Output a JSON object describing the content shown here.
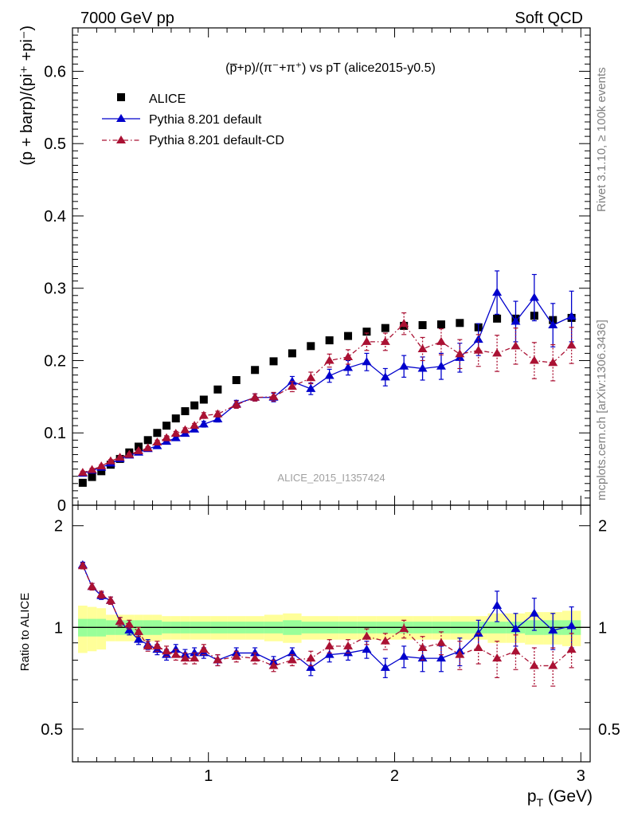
{
  "header": {
    "left": "7000 GeV pp",
    "right": "Soft QCD",
    "rivet": "Rivet 3.1.10, ≥ 100k events",
    "mcplots": "mcplots.cern.ch [arXiv:1306.3436]",
    "watermark": "ALICE_2015_I1357424"
  },
  "chart_data": [
    {
      "type": "scatter",
      "title": "(p̅+p)/(π⁻+π⁺) vs pT (alice2015-y0.5)",
      "xlabel": "p_T (GeV)",
      "ylabel": "(p + barp)/(pi⁺ +pi⁻)",
      "xlim": [
        0.27,
        3.05
      ],
      "ylim": [
        0,
        0.66
      ],
      "yticks": [
        "0",
        "0.1",
        "0.2",
        "0.3",
        "0.4",
        "0.5",
        "0.6"
      ],
      "legend_position": "top-left",
      "x": [
        0.325,
        0.375,
        0.425,
        0.475,
        0.525,
        0.575,
        0.625,
        0.675,
        0.725,
        0.775,
        0.825,
        0.875,
        0.925,
        0.975,
        1.05,
        1.15,
        1.25,
        1.35,
        1.45,
        1.55,
        1.65,
        1.75,
        1.85,
        1.95,
        2.05,
        2.15,
        2.25,
        2.35,
        2.45,
        2.55,
        2.65,
        2.75,
        2.85,
        2.95
      ],
      "series": [
        {
          "name": "ALICE",
          "color": "#000000",
          "marker": "square",
          "values": [
            0.031,
            0.039,
            0.047,
            0.056,
            0.064,
            0.073,
            0.081,
            0.09,
            0.1,
            0.11,
            0.12,
            0.13,
            0.138,
            0.146,
            0.16,
            0.173,
            0.187,
            0.199,
            0.21,
            0.22,
            0.228,
            0.234,
            0.24,
            0.245,
            0.248,
            0.249,
            0.25,
            0.252,
            0.246,
            0.258,
            0.258,
            0.262,
            0.256,
            0.259
          ]
        },
        {
          "name": "Pythia 8.201 default",
          "color": "#0000cc",
          "marker": "triangle",
          "line": "solid",
          "values": [
            0.044,
            0.048,
            0.052,
            0.058,
            0.064,
            0.069,
            0.073,
            0.078,
            0.082,
            0.088,
            0.093,
            0.099,
            0.105,
            0.112,
            0.119,
            0.14,
            0.149,
            0.149,
            0.171,
            0.161,
            0.179,
            0.19,
            0.198,
            0.177,
            0.192,
            0.189,
            0.192,
            0.204,
            0.229,
            0.294,
            0.254,
            0.287,
            0.249,
            0.261
          ],
          "errors": [
            0.002,
            0.002,
            0.002,
            0.002,
            0.002,
            0.002,
            0.002,
            0.002,
            0.003,
            0.003,
            0.003,
            0.003,
            0.003,
            0.004,
            0.004,
            0.005,
            0.005,
            0.006,
            0.007,
            0.008,
            0.009,
            0.01,
            0.012,
            0.012,
            0.015,
            0.016,
            0.018,
            0.02,
            0.022,
            0.03,
            0.028,
            0.032,
            0.03,
            0.035
          ]
        },
        {
          "name": "Pythia 8.201 default-CD",
          "color": "#aa1133",
          "marker": "triangle",
          "line": "dash-dot",
          "values": [
            0.045,
            0.049,
            0.054,
            0.061,
            0.066,
            0.07,
            0.075,
            0.079,
            0.087,
            0.093,
            0.099,
            0.104,
            0.11,
            0.124,
            0.126,
            0.139,
            0.149,
            0.15,
            0.164,
            0.176,
            0.2,
            0.205,
            0.226,
            0.226,
            0.251,
            0.216,
            0.226,
            0.209,
            0.214,
            0.21,
            0.22,
            0.2,
            0.197,
            0.221
          ],
          "errors": [
            0.002,
            0.002,
            0.002,
            0.002,
            0.002,
            0.002,
            0.002,
            0.002,
            0.003,
            0.003,
            0.003,
            0.003,
            0.003,
            0.004,
            0.004,
            0.005,
            0.005,
            0.006,
            0.007,
            0.008,
            0.009,
            0.01,
            0.012,
            0.012,
            0.015,
            0.016,
            0.018,
            0.02,
            0.022,
            0.025,
            0.025,
            0.025,
            0.025,
            0.025
          ]
        }
      ]
    },
    {
      "type": "scatter",
      "ylabel": "Ratio to ALICE",
      "xlim": [
        0.27,
        3.05
      ],
      "ylim": [
        0.4,
        2.3
      ],
      "log_y": true,
      "yticks": [
        "0.5",
        "1",
        "2"
      ],
      "xticks": [
        "1",
        "2",
        "3"
      ],
      "x": [
        0.325,
        0.375,
        0.425,
        0.475,
        0.525,
        0.575,
        0.625,
        0.675,
        0.725,
        0.775,
        0.825,
        0.875,
        0.925,
        0.975,
        1.05,
        1.15,
        1.25,
        1.35,
        1.45,
        1.55,
        1.65,
        1.75,
        1.85,
        1.95,
        2.05,
        2.15,
        2.25,
        2.35,
        2.45,
        2.55,
        2.65,
        2.75,
        2.85,
        2.95
      ],
      "band_inner": [
        0.06,
        0.06,
        0.06,
        0.05,
        0.05,
        0.05,
        0.05,
        0.05,
        0.05,
        0.04,
        0.04,
        0.04,
        0.04,
        0.04,
        0.04,
        0.04,
        0.04,
        0.04,
        0.05,
        0.04,
        0.04,
        0.04,
        0.04,
        0.04,
        0.04,
        0.04,
        0.04,
        0.04,
        0.04,
        0.04,
        0.04,
        0.05,
        0.05,
        0.05
      ],
      "band_outer": [
        0.16,
        0.15,
        0.14,
        0.09,
        0.09,
        0.09,
        0.09,
        0.09,
        0.09,
        0.08,
        0.08,
        0.08,
        0.08,
        0.08,
        0.08,
        0.08,
        0.08,
        0.09,
        0.1,
        0.08,
        0.08,
        0.08,
        0.08,
        0.08,
        0.08,
        0.08,
        0.08,
        0.08,
        0.08,
        0.1,
        0.1,
        0.11,
        0.11,
        0.12
      ],
      "series": [
        {
          "name": "Pythia 8.201 default",
          "color": "#0000cc",
          "values": [
            1.53,
            1.32,
            1.24,
            1.2,
            1.04,
            0.98,
            0.92,
            0.89,
            0.86,
            0.83,
            0.86,
            0.83,
            0.84,
            0.84,
            0.8,
            0.84,
            0.84,
            0.79,
            0.84,
            0.76,
            0.83,
            0.84,
            0.86,
            0.76,
            0.82,
            0.81,
            0.81,
            0.85,
            0.96,
            1.16,
            0.99,
            1.1,
            0.98,
            1.01
          ],
          "errors": [
            0.03,
            0.03,
            0.03,
            0.03,
            0.03,
            0.03,
            0.03,
            0.03,
            0.03,
            0.03,
            0.03,
            0.03,
            0.03,
            0.03,
            0.03,
            0.03,
            0.03,
            0.03,
            0.03,
            0.04,
            0.04,
            0.04,
            0.05,
            0.05,
            0.06,
            0.07,
            0.07,
            0.08,
            0.09,
            0.12,
            0.11,
            0.12,
            0.12,
            0.14
          ]
        },
        {
          "name": "Pythia 8.201 default-CD",
          "color": "#aa1133",
          "values": [
            1.52,
            1.32,
            1.25,
            1.2,
            1.04,
            1.02,
            0.97,
            0.88,
            0.88,
            0.85,
            0.83,
            0.81,
            0.81,
            0.86,
            0.8,
            0.82,
            0.81,
            0.77,
            0.8,
            0.81,
            0.88,
            0.88,
            0.94,
            0.91,
            0.99,
            0.87,
            0.9,
            0.83,
            0.87,
            0.81,
            0.85,
            0.77,
            0.77,
            0.86
          ],
          "errors": [
            0.03,
            0.03,
            0.03,
            0.03,
            0.03,
            0.03,
            0.03,
            0.03,
            0.03,
            0.03,
            0.03,
            0.03,
            0.03,
            0.03,
            0.03,
            0.03,
            0.03,
            0.03,
            0.03,
            0.04,
            0.04,
            0.04,
            0.05,
            0.05,
            0.06,
            0.07,
            0.07,
            0.08,
            0.09,
            0.1,
            0.1,
            0.1,
            0.1,
            0.1
          ]
        }
      ]
    }
  ]
}
